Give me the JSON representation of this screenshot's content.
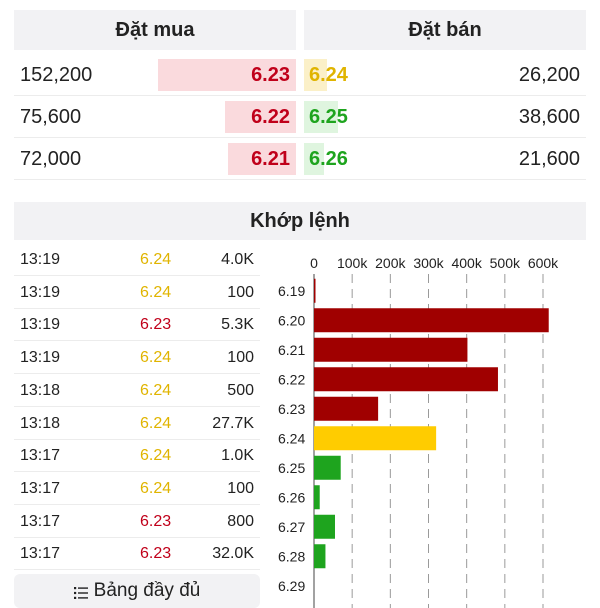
{
  "order_book": {
    "buy_header": "Đặt mua",
    "sell_header": "Đặt bán",
    "rows": [
      {
        "buy_volume": "152,200",
        "buy_price": "6.23",
        "buy_depth": 0.49,
        "sell_price": "6.24",
        "sell_volume": "26,200",
        "sell_depth": 0.08,
        "sell_color": "#e0b400",
        "sell_bar_color": "#fbf0c8"
      },
      {
        "buy_volume": "75,600",
        "buy_price": "6.22",
        "buy_depth": 0.25,
        "sell_price": "6.25",
        "sell_volume": "38,600",
        "sell_depth": 0.12,
        "sell_color": "#1ea41e",
        "sell_bar_color": "#dff5df"
      },
      {
        "buy_volume": "72,000",
        "buy_price": "6.21",
        "buy_depth": 0.24,
        "sell_price": "6.26",
        "sell_volume": "21,600",
        "sell_depth": 0.07,
        "sell_color": "#1ea41e",
        "sell_bar_color": "#dff5df"
      }
    ]
  },
  "matched": {
    "title": "Khớp lệnh",
    "trades": [
      {
        "time": "13:19",
        "price": "6.24",
        "volume": "4.0K",
        "color": "#e0b400"
      },
      {
        "time": "13:19",
        "price": "6.24",
        "volume": "100",
        "color": "#e0b400"
      },
      {
        "time": "13:19",
        "price": "6.23",
        "volume": "5.3K",
        "color": "#c0001a"
      },
      {
        "time": "13:19",
        "price": "6.24",
        "volume": "100",
        "color": "#e0b400"
      },
      {
        "time": "13:18",
        "price": "6.24",
        "volume": "500",
        "color": "#e0b400"
      },
      {
        "time": "13:18",
        "price": "6.24",
        "volume": "27.7K",
        "color": "#e0b400"
      },
      {
        "time": "13:17",
        "price": "6.24",
        "volume": "1.0K",
        "color": "#e0b400"
      },
      {
        "time": "13:17",
        "price": "6.24",
        "volume": "100",
        "color": "#e0b400"
      },
      {
        "time": "13:17",
        "price": "6.23",
        "volume": "800",
        "color": "#c0001a"
      },
      {
        "time": "13:17",
        "price": "6.23",
        "volume": "32.0K",
        "color": "#c0001a"
      }
    ],
    "full_table_label": "Bảng đầy đủ",
    "full_table_icon": "list-icon"
  },
  "colors": {
    "up": "#1ea41e",
    "down": "#c0001a",
    "reference": "#e0b400",
    "down_bar": "#a00000",
    "reference_bar": "#ffcc00",
    "up_bar": "#1ea41e"
  },
  "chart_data": {
    "type": "bar",
    "orientation": "horizontal",
    "categories": [
      "6.19",
      "6.20",
      "6.21",
      "6.22",
      "6.23",
      "6.24",
      "6.25",
      "6.26",
      "6.27",
      "6.28",
      "6.29"
    ],
    "values": [
      3000,
      615000,
      402000,
      482000,
      168000,
      320000,
      70000,
      15000,
      55000,
      30000,
      0
    ],
    "bar_colors": [
      "#a00000",
      "#a00000",
      "#a00000",
      "#a00000",
      "#a00000",
      "#ffcc00",
      "#1ea41e",
      "#1ea41e",
      "#1ea41e",
      "#1ea41e",
      "#1ea41e"
    ],
    "xticks": [
      "0",
      "100k",
      "200k",
      "300k",
      "400k",
      "500k",
      "600k"
    ],
    "xtick_values": [
      0,
      100000,
      200000,
      300000,
      400000,
      500000,
      600000
    ],
    "xlim": [
      0,
      650000
    ],
    "grid": true
  }
}
